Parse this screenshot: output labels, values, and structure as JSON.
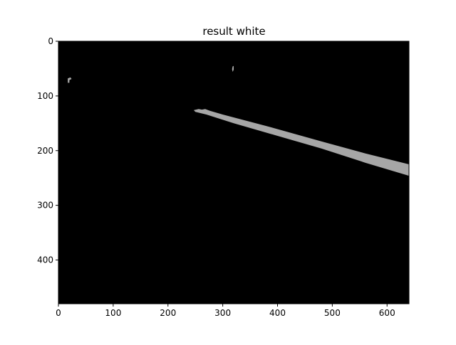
{
  "chart_data": {
    "type": "image",
    "title": "result white",
    "xlabel": "",
    "ylabel": "",
    "xlim": [
      0,
      640
    ],
    "ylim": [
      480,
      0
    ],
    "xticks": [
      0,
      100,
      200,
      300,
      400,
      500,
      600
    ],
    "yticks": [
      0,
      100,
      200,
      300,
      400
    ],
    "background_color": "#000000",
    "mark_color": "#a6a6a6",
    "grid": false,
    "regions": [
      {
        "name": "lane-stripe",
        "polygon": [
          [
            247,
            126
          ],
          [
            256,
            124
          ],
          [
            262,
            125
          ],
          [
            268,
            124
          ],
          [
            276,
            127
          ],
          [
            300,
            134
          ],
          [
            380,
            155
          ],
          [
            480,
            183
          ],
          [
            560,
            205
          ],
          [
            640,
            225
          ],
          [
            640,
            246
          ],
          [
            560,
            222
          ],
          [
            480,
            196
          ],
          [
            400,
            173
          ],
          [
            320,
            150
          ],
          [
            270,
            134
          ],
          [
            250,
            129
          ]
        ]
      },
      {
        "name": "left-blob",
        "polygon": [
          [
            17,
            68
          ],
          [
            22,
            66
          ],
          [
            24,
            69
          ],
          [
            20,
            71
          ],
          [
            20,
            76
          ],
          [
            17,
            76
          ]
        ]
      },
      {
        "name": "top-speck",
        "polygon": [
          [
            318,
            46
          ],
          [
            320,
            45
          ],
          [
            320,
            52
          ],
          [
            318,
            56
          ],
          [
            317,
            51
          ]
        ]
      }
    ]
  }
}
